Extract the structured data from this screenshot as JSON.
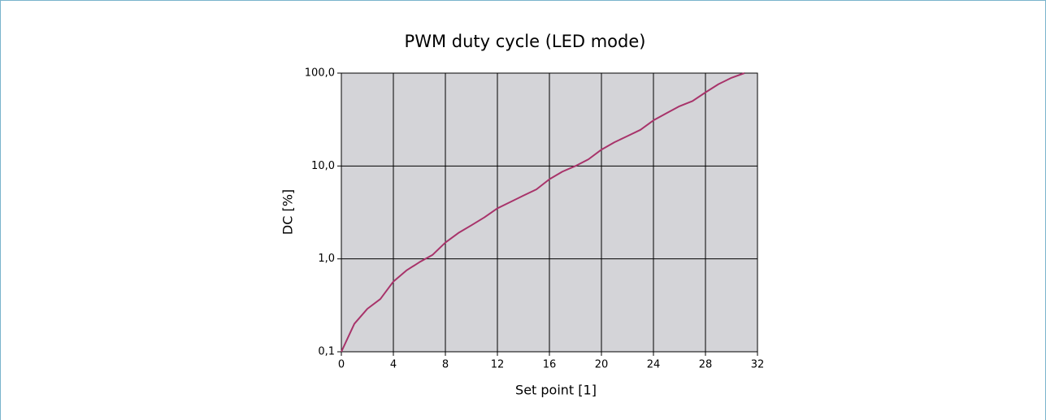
{
  "chart_data": {
    "type": "line",
    "title": "PWM duty cycle (LED mode)",
    "xlabel": "Set point [1]",
    "ylabel": "DC [%]",
    "x": [
      0,
      1,
      2,
      3,
      4,
      5,
      6,
      7,
      8,
      9,
      10,
      11,
      12,
      13,
      14,
      15,
      16,
      17,
      18,
      19,
      20,
      21,
      22,
      23,
      24,
      25,
      26,
      27,
      28,
      29,
      30,
      31
    ],
    "series": [
      {
        "name": "DC",
        "color": "#a8336a",
        "values": [
          0.1,
          0.2,
          0.29,
          0.37,
          0.57,
          0.75,
          0.92,
          1.1,
          1.5,
          1.9,
          2.3,
          2.8,
          3.5,
          4.1,
          4.8,
          5.6,
          7.2,
          8.7,
          10,
          11.8,
          15,
          18,
          21,
          24.5,
          31,
          37,
          44,
          50,
          62,
          76,
          89,
          100
        ]
      }
    ],
    "xlim": [
      0,
      32
    ],
    "xticks": [
      0,
      4,
      8,
      12,
      16,
      20,
      24,
      28,
      32
    ],
    "ylim": [
      0.1,
      100
    ],
    "yticks": [
      {
        "value": 0.1,
        "label": "0,1"
      },
      {
        "value": 1,
        "label": "1,0"
      },
      {
        "value": 10,
        "label": "10,0"
      },
      {
        "value": 100,
        "label": "100,0"
      }
    ],
    "yscale": "log",
    "grid": true,
    "background": "#d4d4d8"
  }
}
